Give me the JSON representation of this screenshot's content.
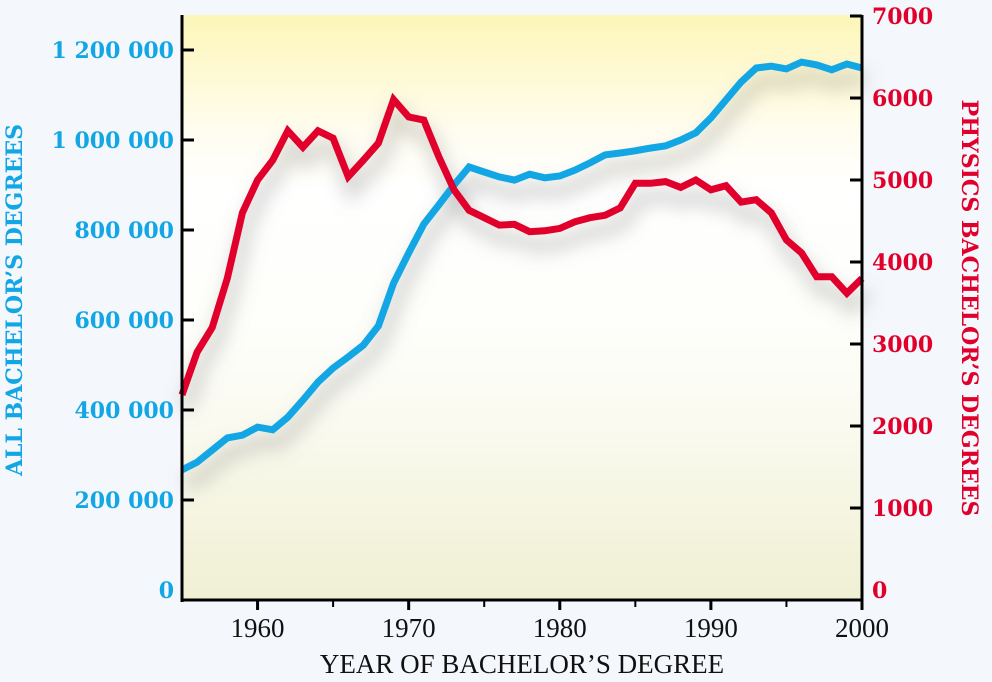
{
  "chart_data": {
    "type": "line",
    "title": "",
    "xlabel": "YEAR OF BACHELOR’S DEGREE",
    "ylabel_left": "ALL BACHELOR’S DEGREES",
    "ylabel_right": "PHYSICS BACHELOR’S DEGREES",
    "xlim": [
      1955,
      2000
    ],
    "ylim_left": [
      0,
      1260000
    ],
    "ylim_right": [
      0,
      7000
    ],
    "x_ticks": [
      "1960",
      "1970",
      "1980",
      "1990",
      "2000"
    ],
    "x_tick_values": [
      1960,
      1970,
      1980,
      1990,
      2000
    ],
    "left_ticks": [
      "0",
      "200 000",
      "400 000",
      "600 000",
      "800 000",
      "1 000 000",
      "1 200 000"
    ],
    "left_tick_values": [
      0,
      200000,
      400000,
      600000,
      800000,
      1000000,
      1200000
    ],
    "right_ticks": [
      "0",
      "1000",
      "2000",
      "3000",
      "4000",
      "5000",
      "6000",
      "7000"
    ],
    "right_tick_values": [
      0,
      1000,
      2000,
      3000,
      4000,
      5000,
      6000,
      7000
    ],
    "colors": {
      "all": "#12a6e4",
      "physics": "#e0002b"
    },
    "x": [
      1955,
      1956,
      1957,
      1958,
      1959,
      1960,
      1961,
      1962,
      1963,
      1964,
      1965,
      1966,
      1967,
      1968,
      1969,
      1970,
      1971,
      1972,
      1973,
      1974,
      1975,
      1976,
      1977,
      1978,
      1979,
      1980,
      1981,
      1982,
      1983,
      1984,
      1985,
      1986,
      1987,
      1988,
      1989,
      1990,
      1991,
      1992,
      1993,
      1994,
      1995,
      1996,
      1997,
      1998,
      1999,
      2000
    ],
    "series": [
      {
        "name": "All bachelor’s degrees",
        "axis": "left",
        "values": [
          267000,
          284000,
          311000,
          338000,
          344000,
          362000,
          356000,
          384000,
          422000,
          462000,
          493000,
          518000,
          544000,
          587000,
          682000,
          749000,
          813000,
          856000,
          900000,
          940000,
          929000,
          918000,
          911000,
          924000,
          916000,
          920000,
          933000,
          949000,
          967000,
          971000,
          976000,
          982000,
          987000,
          1000000,
          1016000,
          1049000,
          1089000,
          1129000,
          1160000,
          1164000,
          1158000,
          1173000,
          1167000,
          1156000,
          1169000,
          1160000
        ]
      },
      {
        "name": "Physics bachelor’s degrees",
        "axis": "right",
        "values": [
          2380,
          2900,
          3200,
          3800,
          4600,
          5000,
          5240,
          5600,
          5400,
          5600,
          5510,
          5040,
          5240,
          5450,
          5980,
          5770,
          5730,
          5280,
          4880,
          4630,
          4540,
          4450,
          4460,
          4370,
          4380,
          4410,
          4490,
          4540,
          4570,
          4660,
          4960,
          4960,
          4980,
          4910,
          5000,
          4880,
          4930,
          4730,
          4760,
          4600,
          4270,
          4110,
          3820,
          3820,
          3620,
          3800
        ]
      }
    ]
  }
}
